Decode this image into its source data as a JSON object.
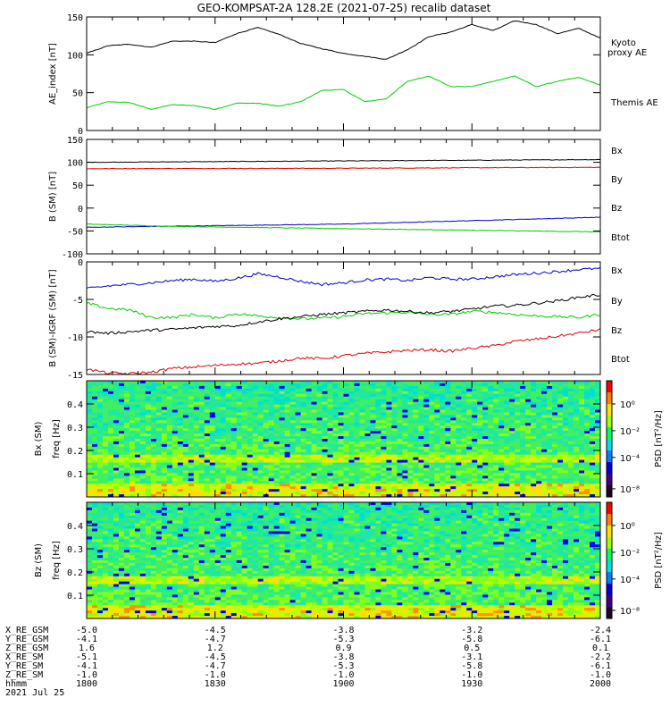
{
  "title": "GEO-KOMPSAT-2A 128.2E (2021-07-25) recalib dataset",
  "chart_data": [
    {
      "type": "line",
      "ylabel": "AE_index [nT]",
      "ylim": [
        0,
        150
      ],
      "yticks": [
        "0",
        "50",
        "100",
        "150"
      ],
      "legend": [
        {
          "name": "Kyoto proxy AE",
          "lines": [
            "Kyoto",
            "proxy AE"
          ],
          "color": "#00cc00"
        },
        {
          "name": "Themis AE",
          "lines": [
            "Themis AE"
          ],
          "color": "#000000"
        }
      ],
      "series": [
        {
          "name": "Kyoto proxy AE",
          "color": "#00cc00",
          "x": [
            0,
            5,
            10,
            15,
            20,
            25,
            30,
            35,
            40,
            45,
            50,
            55,
            60,
            65,
            70,
            75,
            80,
            85,
            90,
            95,
            100,
            105,
            110,
            115,
            120
          ],
          "values": [
            30,
            38,
            37,
            28,
            34,
            33,
            28,
            36,
            36,
            32,
            38,
            53,
            54,
            38,
            42,
            65,
            72,
            58,
            58,
            65,
            72,
            58,
            65,
            70,
            60
          ]
        },
        {
          "name": "Themis AE",
          "color": "#000000",
          "x": [
            0,
            5,
            10,
            15,
            20,
            25,
            30,
            35,
            40,
            45,
            50,
            55,
            60,
            65,
            70,
            75,
            80,
            85,
            90,
            95,
            100,
            105,
            110,
            115,
            120
          ],
          "values": [
            102,
            112,
            114,
            110,
            118,
            118,
            116,
            128,
            136,
            127,
            115,
            108,
            102,
            98,
            94,
            107,
            124,
            130,
            140,
            132,
            145,
            140,
            128,
            135,
            122
          ]
        }
      ]
    },
    {
      "type": "line",
      "ylabel": "B (SM) [nT]",
      "ylim": [
        -100,
        150
      ],
      "yticks": [
        "-100",
        "-50",
        "0",
        "50",
        "100",
        "150"
      ],
      "legend": [
        {
          "name": "Bx",
          "lines": [
            "Bx"
          ],
          "color": "#0000cc"
        },
        {
          "name": "By",
          "lines": [
            "By"
          ],
          "color": "#00cc00"
        },
        {
          "name": "Bz",
          "lines": [
            "Bz"
          ],
          "color": "#dd0000"
        },
        {
          "name": "Btot",
          "lines": [
            "Btot"
          ],
          "color": "#000000"
        }
      ],
      "series": [
        {
          "name": "Btot",
          "color": "#000000",
          "x": [
            0,
            60,
            120
          ],
          "values": [
            100,
            103,
            106
          ]
        },
        {
          "name": "Bz",
          "color": "#dd0000",
          "x": [
            0,
            60,
            120
          ],
          "values": [
            86,
            87,
            89
          ]
        },
        {
          "name": "Bx",
          "color": "#0000cc",
          "x": [
            0,
            60,
            120
          ],
          "values": [
            -42,
            -35,
            -20
          ]
        },
        {
          "name": "By",
          "color": "#00cc00",
          "x": [
            0,
            20,
            60,
            120
          ],
          "values": [
            -35,
            -40,
            -45,
            -52
          ]
        }
      ]
    },
    {
      "type": "line",
      "ylabel": "B (SM)-IGRF (SM) [nT]",
      "ylim": [
        -15,
        0
      ],
      "yticks": [
        "-15",
        "-10",
        "-5",
        "0"
      ],
      "legend": [
        {
          "name": "Bx",
          "lines": [
            "Bx"
          ],
          "color": "#0000cc"
        },
        {
          "name": "By",
          "lines": [
            "By"
          ],
          "color": "#00cc00"
        },
        {
          "name": "Bz",
          "lines": [
            "Bz"
          ],
          "color": "#dd0000"
        },
        {
          "name": "Btot",
          "lines": [
            "Btot"
          ],
          "color": "#000000"
        }
      ],
      "series": [
        {
          "name": "Bx",
          "color": "#0000cc",
          "x": [
            0,
            5,
            10,
            15,
            20,
            25,
            30,
            35,
            40,
            45,
            50,
            55,
            60,
            65,
            70,
            75,
            80,
            85,
            90,
            95,
            100,
            105,
            110,
            115,
            120
          ],
          "values": [
            -3.6,
            -3.2,
            -3.0,
            -2.8,
            -2.5,
            -2.3,
            -2.6,
            -2.2,
            -1.6,
            -2.0,
            -2.6,
            -3.0,
            -2.8,
            -2.4,
            -2.3,
            -2.5,
            -2.1,
            -2.3,
            -2.3,
            -2.0,
            -1.7,
            -1.5,
            -1.3,
            -1.0,
            -0.9
          ]
        },
        {
          "name": "By",
          "color": "#00cc00",
          "x": [
            0,
            5,
            10,
            15,
            20,
            25,
            30,
            35,
            40,
            45,
            50,
            55,
            60,
            65,
            70,
            75,
            80,
            85,
            90,
            95,
            100,
            105,
            110,
            115,
            120
          ],
          "values": [
            -5.5,
            -6.2,
            -6.4,
            -7.4,
            -7.4,
            -7.0,
            -7.5,
            -6.9,
            -7.2,
            -7.4,
            -7.6,
            -7.5,
            -7.3,
            -6.9,
            -6.8,
            -6.7,
            -7.0,
            -7.0,
            -6.6,
            -6.7,
            -7.0,
            -7.2,
            -7.3,
            -7.4,
            -7.0
          ]
        },
        {
          "name": "Btot",
          "color": "#000000",
          "x": [
            0,
            5,
            10,
            15,
            20,
            25,
            30,
            35,
            40,
            45,
            50,
            55,
            60,
            65,
            70,
            75,
            80,
            85,
            90,
            95,
            100,
            105,
            110,
            115,
            120
          ],
          "values": [
            -9.3,
            -9.5,
            -9.3,
            -9.1,
            -9.0,
            -8.8,
            -8.6,
            -8.5,
            -8.0,
            -7.6,
            -7.3,
            -7.0,
            -6.8,
            -6.6,
            -6.4,
            -6.6,
            -6.8,
            -6.6,
            -6.3,
            -5.9,
            -5.8,
            -5.5,
            -5.2,
            -4.7,
            -4.4
          ]
        },
        {
          "name": "Bz",
          "color": "#dd0000",
          "x": [
            0,
            5,
            10,
            15,
            20,
            25,
            30,
            35,
            40,
            45,
            50,
            55,
            60,
            65,
            70,
            75,
            80,
            85,
            90,
            95,
            100,
            105,
            110,
            115,
            120
          ],
          "values": [
            -14.3,
            -14.8,
            -14.9,
            -14.7,
            -14.2,
            -14.0,
            -13.8,
            -13.6,
            -13.5,
            -13.2,
            -12.8,
            -12.9,
            -12.5,
            -12.2,
            -12.0,
            -11.8,
            -11.7,
            -11.9,
            -11.5,
            -11.2,
            -10.6,
            -10.3,
            -9.9,
            -9.5,
            -9.0
          ]
        }
      ]
    },
    {
      "type": "heatmap",
      "title": "Bx (SM)",
      "ylabel": "freq [Hz]",
      "ylim": [
        0,
        0.5
      ],
      "yticks": [
        "0.1",
        "0.2",
        "0.3",
        "0.4"
      ],
      "colorbar": {
        "label": "PSD [nT²/Hz]",
        "ticks": [
          "10⁰",
          "10⁻²",
          "10⁻⁴",
          "10⁻⁸"
        ]
      }
    },
    {
      "type": "heatmap",
      "title": "Bz (SM)",
      "ylabel": "freq [Hz]",
      "ylim": [
        0,
        0.5
      ],
      "yticks": [
        "0.1",
        "0.2",
        "0.3",
        "0.4"
      ],
      "colorbar": {
        "label": "PSD [nT²/Hz]",
        "ticks": [
          "10⁰",
          "10⁻²",
          "10⁻⁴",
          "10⁻⁸"
        ]
      }
    }
  ],
  "ephemeris": {
    "rows": [
      {
        "label": "X_RE_GSM",
        "values": [
          "-5.0",
          "-4.5",
          "-3.8",
          "-3.2",
          "-2.4"
        ]
      },
      {
        "label": "Y_RE_GSM",
        "values": [
          "-4.1",
          "-4.7",
          "-5.3",
          "-5.8",
          "-6.1"
        ]
      },
      {
        "label": "Z_RE_GSM",
        "values": [
          "1.6",
          "1.2",
          "0.9",
          "0.5",
          "0.1"
        ]
      },
      {
        "label": "X_RE_SM",
        "values": [
          "-5.1",
          "-4.5",
          "-3.8",
          "-3.1",
          "-2.2"
        ]
      },
      {
        "label": "Y_RE_SM",
        "values": [
          "-4.1",
          "-4.7",
          "-5.3",
          "-5.8",
          "-6.1"
        ]
      },
      {
        "label": "Z_RE_SM",
        "values": [
          "-1.0",
          "-1.0",
          "-1.0",
          "-1.0",
          "-1.0"
        ]
      },
      {
        "label": "hhmm",
        "values": [
          "1800",
          "1830",
          "1900",
          "1930",
          "2000"
        ]
      }
    ],
    "date": "2021 Jul 25"
  }
}
